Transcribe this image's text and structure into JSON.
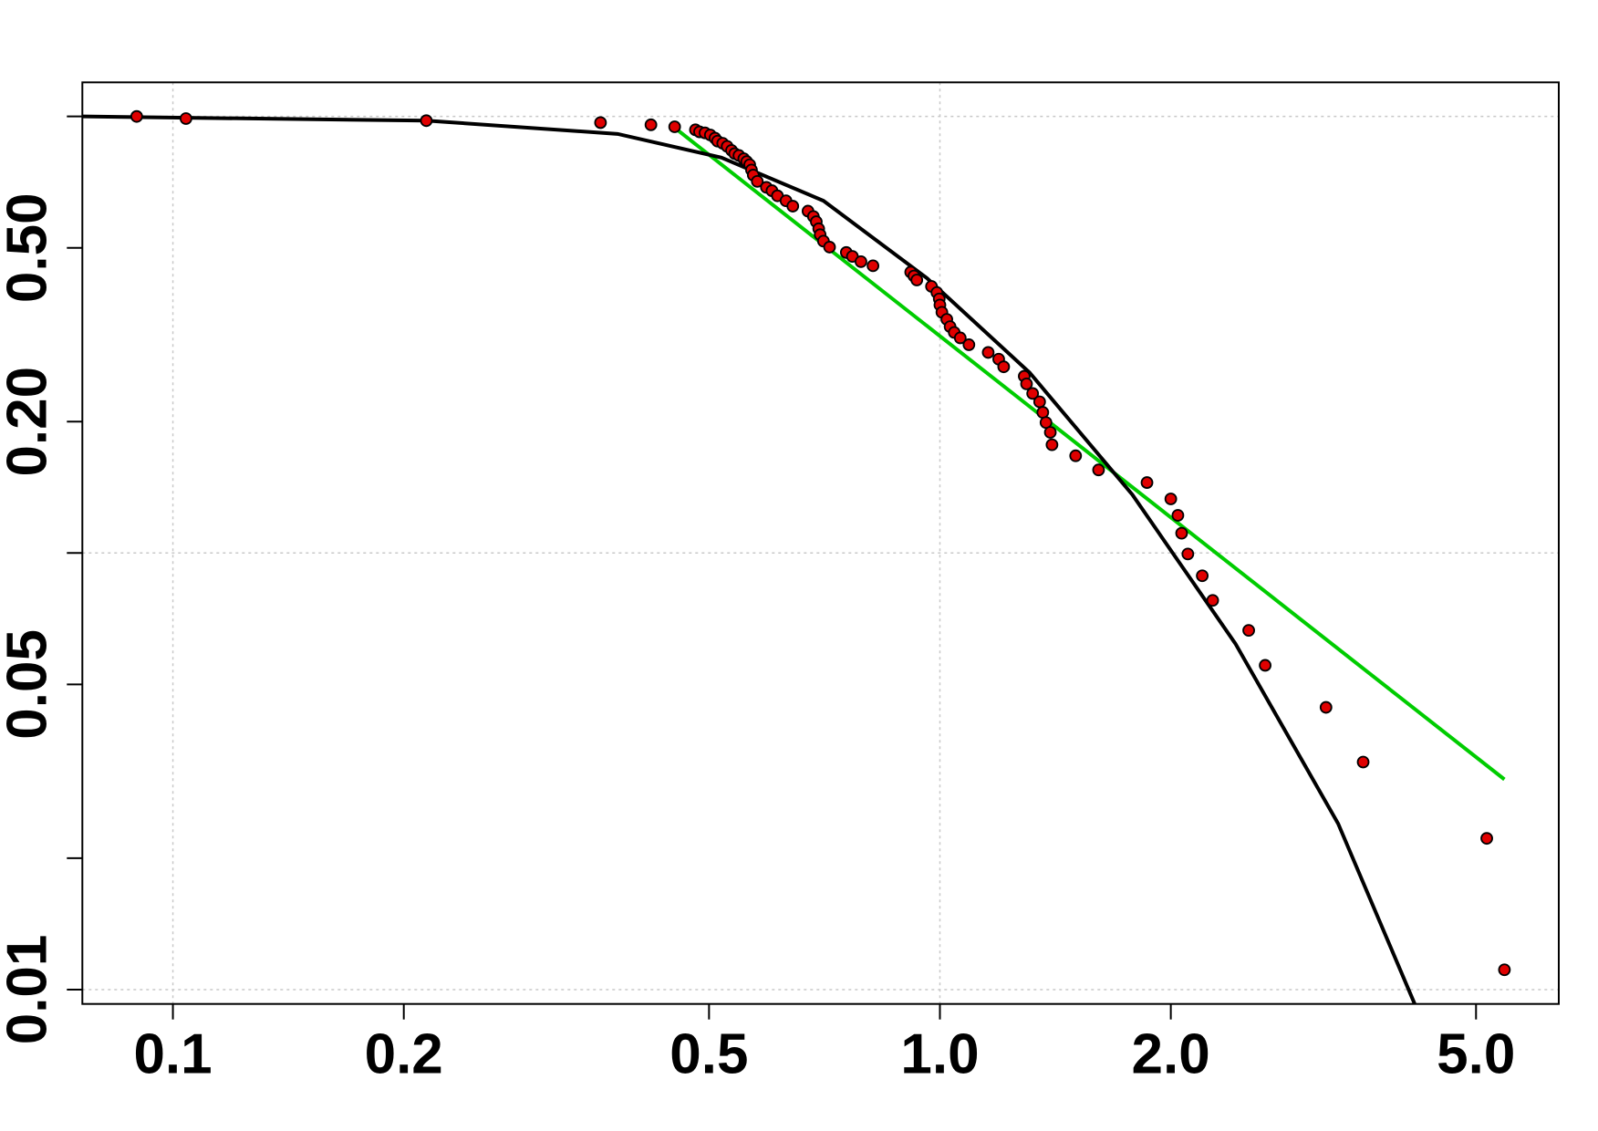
{
  "chart_data": {
    "type": "scatter",
    "xscale": "log",
    "yscale": "log",
    "xlim": [
      0.0762,
      6.41
    ],
    "ylim": [
      0.00927,
      1.197
    ],
    "xticks": [
      0.1,
      0.2,
      0.5,
      {
        "value": 1,
        "label": "1.0"
      },
      {
        "value": 2,
        "label": "2.0"
      },
      {
        "value": 5,
        "label": "5.0"
      }
    ],
    "yticks": [
      0.01,
      0.05,
      {
        "value": 0.2,
        "label": "0.20"
      },
      {
        "value": 0.5,
        "label": "0.50"
      }
    ],
    "yticks_minor": [
      0.02,
      0.1,
      1
    ],
    "xgrid": [
      0.1,
      1
    ],
    "ygrid": [
      0.01,
      0.1,
      1
    ],
    "series": [
      {
        "kind": "points",
        "color": "#e00000",
        "x": [
          0.0897,
          0.104,
          0.214,
          0.361,
          0.42,
          0.451,
          0.48,
          0.486,
          0.494,
          0.502,
          0.509,
          0.513,
          0.521,
          0.528,
          0.535,
          0.54,
          0.547,
          0.555,
          0.56,
          0.565,
          0.568,
          0.571,
          0.578,
          0.594,
          0.604,
          0.614,
          0.63,
          0.643,
          0.673,
          0.684,
          0.69,
          0.695,
          0.698,
          0.705,
          0.718,
          0.755,
          0.769,
          0.789,
          0.818,
          0.916,
          0.925,
          0.933,
          0.975,
          0.991,
          0.998,
          1.0,
          1.006,
          1.021,
          1.031,
          1.044,
          1.063,
          1.091,
          1.156,
          1.193,
          1.211,
          1.288,
          1.297,
          1.321,
          1.349,
          1.362,
          1.375,
          1.393,
          1.4,
          1.503,
          1.61,
          1.862,
          2.0,
          2.043,
          2.066,
          2.105,
          2.198,
          2.268,
          2.527,
          2.655,
          3.187,
          3.563,
          5.164,
          5.445
        ],
        "y": [
          1.0,
          0.989,
          0.978,
          0.968,
          0.957,
          0.947,
          0.932,
          0.922,
          0.917,
          0.907,
          0.892,
          0.878,
          0.868,
          0.854,
          0.836,
          0.822,
          0.814,
          0.8,
          0.788,
          0.775,
          0.754,
          0.734,
          0.71,
          0.688,
          0.676,
          0.658,
          0.641,
          0.623,
          0.607,
          0.59,
          0.574,
          0.553,
          0.536,
          0.518,
          0.502,
          0.488,
          0.478,
          0.465,
          0.455,
          0.44,
          0.431,
          0.422,
          0.408,
          0.395,
          0.382,
          0.37,
          0.356,
          0.343,
          0.33,
          0.32,
          0.311,
          0.3,
          0.288,
          0.278,
          0.267,
          0.254,
          0.244,
          0.232,
          0.222,
          0.21,
          0.199,
          0.189,
          0.177,
          0.167,
          0.155,
          0.145,
          0.133,
          0.122,
          0.111,
          0.0995,
          0.0887,
          0.0779,
          0.0665,
          0.0553,
          0.0443,
          0.0332,
          0.0222,
          0.0111
        ]
      },
      {
        "kind": "line",
        "color": "#00cc00",
        "x": [
          0.451,
          5.445
        ],
        "y": [
          0.942,
          0.0303
        ]
      },
      {
        "kind": "line",
        "color": "#000000",
        "x": [
          0.0762,
          0.214,
          0.38,
          0.519,
          0.705,
          0.962,
          1.309,
          1.782,
          2.428,
          3.305,
          4.159
        ],
        "y": [
          1.0,
          0.978,
          0.912,
          0.805,
          0.641,
          0.426,
          0.259,
          0.136,
          0.062,
          0.024,
          0.00927
        ]
      }
    ]
  }
}
